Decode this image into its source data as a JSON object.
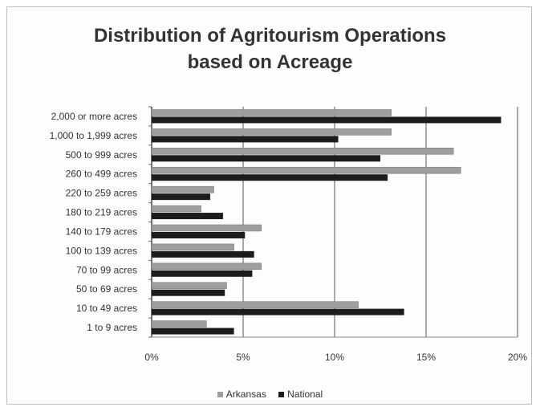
{
  "chart_data": {
    "type": "bar",
    "orientation": "horizontal",
    "title": [
      "Distribution of Agritourism Operations",
      "based on Acreage"
    ],
    "categories": [
      "2,000 or more acres",
      "1,000 to 1,999 acres",
      "500 to 999 acres",
      "260 to 499 acres",
      "220 to 259 acres",
      "180 to 219 acres",
      "140 to 179 acres",
      "100 to 139 acres",
      "70 to 99 acres",
      "50 to 69 acres",
      "10 to 49 acres",
      "1 to 9 acres"
    ],
    "series": [
      {
        "name": "Arkansas",
        "color": "#9e9e9e",
        "values": [
          13.1,
          13.1,
          16.5,
          16.9,
          3.4,
          2.7,
          6.0,
          4.5,
          6.0,
          4.1,
          11.3,
          3.0
        ]
      },
      {
        "name": "National",
        "color": "#1c1c1c",
        "values": [
          19.1,
          10.2,
          12.5,
          12.9,
          3.2,
          3.9,
          5.1,
          5.6,
          5.5,
          4.0,
          13.8,
          4.5
        ]
      }
    ],
    "xlim": [
      0,
      20
    ],
    "xticks": [
      0,
      5,
      10,
      15,
      20
    ],
    "xtick_labels": [
      "0%",
      "5%",
      "10%",
      "15%",
      "20%"
    ],
    "grid": "vertical",
    "legend_position": "bottom"
  }
}
